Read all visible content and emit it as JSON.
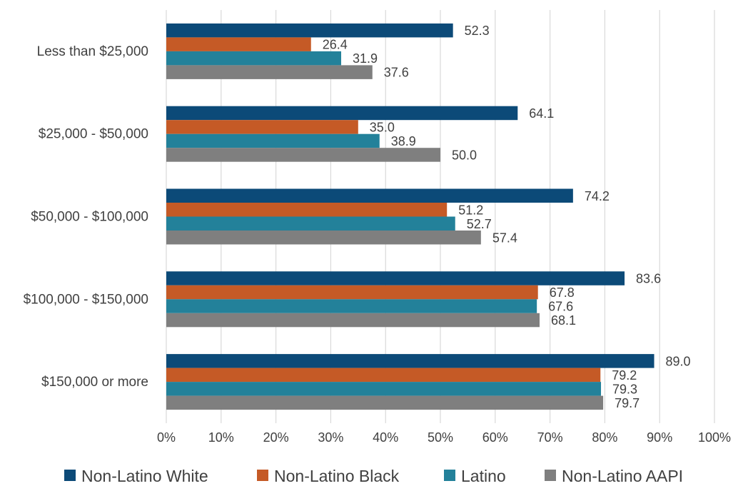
{
  "chart_data": {
    "type": "bar",
    "orientation": "horizontal",
    "categories": [
      "Less than $25,000",
      "$25,000 - $50,000",
      "$50,000 - $100,000",
      "$100,000 - $150,000",
      "$150,000 or more"
    ],
    "series": [
      {
        "name": "Non-Latino White",
        "color": "#0c4a78",
        "values": [
          52.3,
          64.1,
          74.2,
          83.6,
          89.0
        ],
        "labels": [
          "52.3",
          "64.1",
          "74.2",
          "83.6",
          "89.0"
        ]
      },
      {
        "name": "Non-Latino Black",
        "color": "#c55a26",
        "values": [
          26.4,
          35.0,
          51.2,
          67.8,
          79.2
        ],
        "labels": [
          "26.4",
          "35.0",
          "51.2",
          "67.8",
          "79.2"
        ]
      },
      {
        "name": "Latino",
        "color": "#23819a",
        "values": [
          31.9,
          38.9,
          52.7,
          67.6,
          79.3
        ],
        "labels": [
          "31.9",
          "38.9",
          "52.7",
          "67.6",
          "79.3"
        ]
      },
      {
        "name": "Non-Latino AAPI",
        "color": "#7f7f7f",
        "values": [
          37.6,
          50.0,
          57.4,
          68.1,
          79.7
        ],
        "labels": [
          "37.6",
          "50.0",
          "57.4",
          "68.1",
          "79.7"
        ]
      }
    ],
    "x_ticks": [
      "0%",
      "10%",
      "20%",
      "30%",
      "40%",
      "50%",
      "60%",
      "70%",
      "80%",
      "90%",
      "100%"
    ],
    "xlim": [
      0,
      100
    ],
    "title": "",
    "xlabel": "",
    "ylabel": "",
    "grid": "vertical",
    "legend_position": "bottom"
  }
}
